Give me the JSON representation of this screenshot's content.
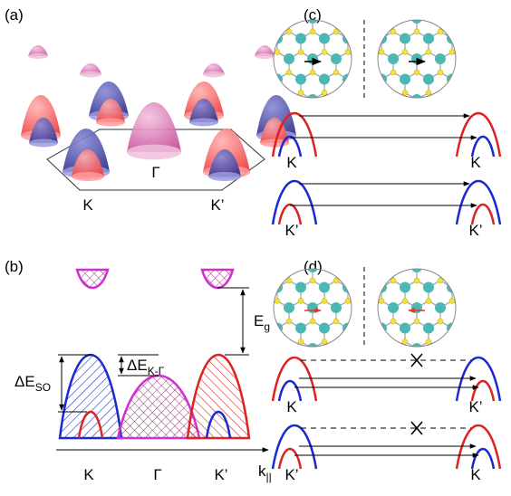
{
  "panel_a": {
    "label": "(a)",
    "gamma": "Γ",
    "k": "K",
    "k_prime": "K’"
  },
  "panel_b": {
    "label": "(b)",
    "delta_e_so": {
      "main": "ΔE",
      "sub": "SO"
    },
    "delta_e_kg": {
      "main": "ΔE",
      "sub": "K-Γ"
    },
    "e_g": {
      "main": "E",
      "sub": "g"
    },
    "axis": {
      "main": "k",
      "sub": "||"
    },
    "points": [
      "K",
      "Γ",
      "K’"
    ]
  },
  "panel_c": {
    "label": "(c)",
    "rows": [
      [
        "K",
        "K"
      ],
      [
        "K’",
        "K’"
      ]
    ]
  },
  "panel_d": {
    "label": "(d)",
    "rows": [
      [
        "K",
        "K’"
      ],
      [
        "K’",
        "K"
      ]
    ]
  }
}
